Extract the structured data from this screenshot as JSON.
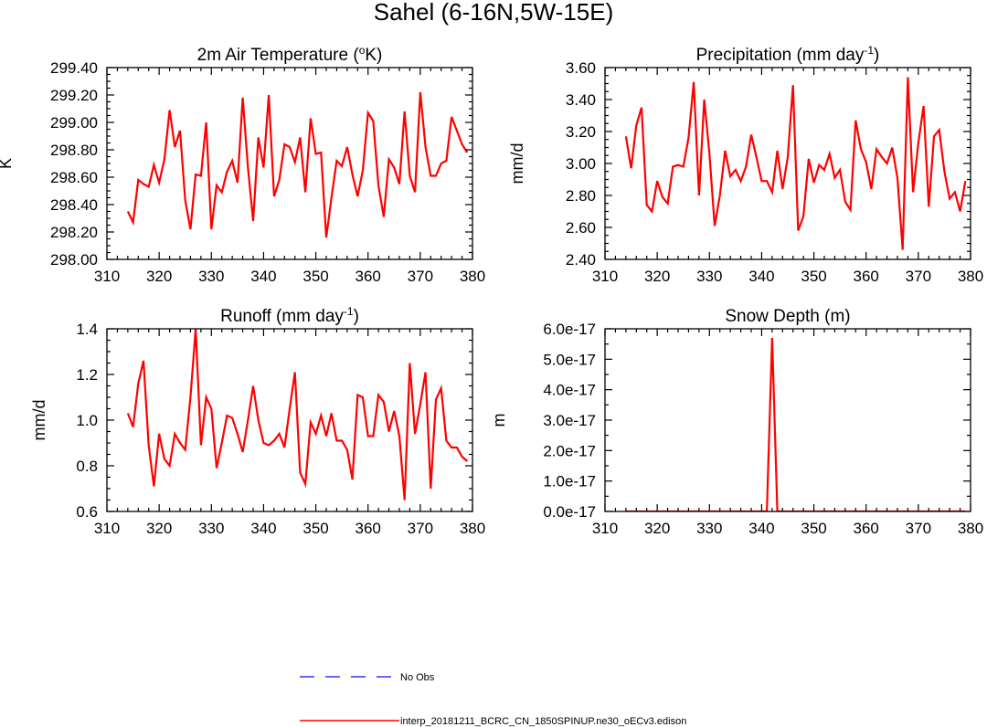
{
  "main_title": "Sahel (6-16N,5W-15E)",
  "colors": {
    "model": "#ff0000",
    "obs": "#3333ff",
    "axis": "#000000"
  },
  "legend": [
    {
      "label": "No Obs",
      "color": "#3333ff",
      "dash": true
    },
    {
      "label": "interp_20181211_BCRC_CN_1850SPINUP.ne30_oECv3.edison",
      "color": "#ff0000",
      "dash": false
    }
  ],
  "chart_data": [
    {
      "id": "temp",
      "type": "line",
      "title_text": "2m Air Temperature (",
      "title_sup": "o",
      "title_tail": "K)",
      "ylabel": "K",
      "xlim": [
        310,
        380
      ],
      "ylim": [
        298.0,
        299.4
      ],
      "xticks": [
        310,
        320,
        330,
        340,
        350,
        360,
        370,
        380
      ],
      "yticks": [
        298.0,
        298.2,
        298.4,
        298.6,
        298.8,
        299.0,
        299.2,
        299.4
      ],
      "ytick_labels": [
        "298.00",
        "298.20",
        "298.40",
        "298.60",
        "298.80",
        "299.00",
        "299.20",
        "299.40"
      ],
      "series": [
        {
          "x": [
            314,
            315,
            316,
            317,
            318,
            319,
            320,
            321,
            322,
            323,
            324,
            325,
            326,
            327,
            328,
            329,
            330,
            331,
            332,
            333,
            334,
            335,
            336,
            337,
            338,
            339,
            340,
            341,
            342,
            343,
            344,
            345,
            346,
            347,
            348,
            349,
            350,
            351,
            352,
            353,
            354,
            355,
            356,
            357,
            358,
            359,
            360,
            361,
            362,
            363,
            364,
            365,
            366,
            367,
            368,
            369,
            370,
            371,
            372,
            373,
            374,
            375,
            376,
            377,
            378,
            379
          ],
          "y": [
            298.35,
            298.27,
            298.58,
            298.55,
            298.53,
            298.69,
            298.56,
            298.73,
            299.09,
            298.82,
            298.94,
            298.43,
            298.22,
            298.62,
            298.61,
            299.0,
            298.22,
            298.54,
            298.49,
            298.64,
            298.72,
            298.56,
            299.18,
            298.67,
            298.28,
            298.89,
            298.67,
            299.2,
            298.46,
            298.58,
            298.84,
            298.82,
            298.71,
            298.89,
            298.49,
            299.03,
            298.77,
            298.78,
            298.16,
            298.45,
            298.72,
            298.68,
            298.82,
            298.62,
            298.46,
            298.65,
            299.07,
            299.01,
            298.54,
            298.31,
            298.73,
            298.67,
            298.55,
            299.08,
            298.61,
            298.49,
            299.22,
            298.82,
            298.61,
            298.61,
            298.7,
            298.72,
            299.04,
            298.94,
            298.84,
            298.78
          ]
        }
      ]
    },
    {
      "id": "precip",
      "type": "line",
      "title_text": "Precipitation (mm day",
      "title_sup": "-1",
      "title_tail": ")",
      "ylabel": "mm/d",
      "xlim": [
        310,
        380
      ],
      "ylim": [
        2.4,
        3.6
      ],
      "xticks": [
        310,
        320,
        330,
        340,
        350,
        360,
        370,
        380
      ],
      "yticks": [
        2.4,
        2.6,
        2.8,
        3.0,
        3.2,
        3.4,
        3.6
      ],
      "ytick_labels": [
        "2.40",
        "2.60",
        "2.80",
        "3.00",
        "3.20",
        "3.40",
        "3.60"
      ],
      "series": [
        {
          "x": [
            314,
            315,
            316,
            317,
            318,
            319,
            320,
            321,
            322,
            323,
            324,
            325,
            326,
            327,
            328,
            329,
            330,
            331,
            332,
            333,
            334,
            335,
            336,
            337,
            338,
            339,
            340,
            341,
            342,
            343,
            344,
            345,
            346,
            347,
            348,
            349,
            350,
            351,
            352,
            353,
            354,
            355,
            356,
            357,
            358,
            359,
            360,
            361,
            362,
            363,
            364,
            365,
            366,
            367,
            368,
            369,
            370,
            371,
            372,
            373,
            374,
            375,
            376,
            377,
            378,
            379
          ],
          "y": [
            3.17,
            2.97,
            3.24,
            3.35,
            2.74,
            2.7,
            2.89,
            2.79,
            2.75,
            2.98,
            2.99,
            2.98,
            3.16,
            3.51,
            2.8,
            3.4,
            3.06,
            2.61,
            2.8,
            3.08,
            2.92,
            2.96,
            2.89,
            2.98,
            3.18,
            3.04,
            2.89,
            2.89,
            2.82,
            3.08,
            2.84,
            3.04,
            3.49,
            2.58,
            2.67,
            3.03,
            2.88,
            2.99,
            2.96,
            3.06,
            2.91,
            2.96,
            2.76,
            2.71,
            3.27,
            3.09,
            3.01,
            2.84,
            3.09,
            3.04,
            3.0,
            3.1,
            2.91,
            2.46,
            3.54,
            2.82,
            3.13,
            3.36,
            2.73,
            3.17,
            3.21,
            2.95,
            2.78,
            2.82,
            2.7,
            2.89
          ]
        }
      ]
    },
    {
      "id": "runoff",
      "type": "line",
      "title_text": "Runoff (mm day",
      "title_sup": "-1",
      "title_tail": ")",
      "ylabel": "mm/d",
      "xlim": [
        310,
        380
      ],
      "ylim": [
        0.6,
        1.4
      ],
      "xticks": [
        310,
        320,
        330,
        340,
        350,
        360,
        370,
        380
      ],
      "yticks": [
        0.6,
        0.8,
        1.0,
        1.2,
        1.4
      ],
      "ytick_labels": [
        "0.6",
        "0.8",
        "1.0",
        "1.2",
        "1.4"
      ],
      "series": [
        {
          "x": [
            314,
            315,
            316,
            317,
            318,
            319,
            320,
            321,
            322,
            323,
            324,
            325,
            326,
            327,
            328,
            329,
            330,
            331,
            332,
            333,
            334,
            335,
            336,
            337,
            338,
            339,
            340,
            341,
            342,
            343,
            344,
            345,
            346,
            347,
            348,
            349,
            350,
            351,
            352,
            353,
            354,
            355,
            356,
            357,
            358,
            359,
            360,
            361,
            362,
            363,
            364,
            365,
            366,
            367,
            368,
            369,
            370,
            371,
            372,
            373,
            374,
            375,
            376,
            377,
            378,
            379
          ],
          "y": [
            1.03,
            0.97,
            1.16,
            1.26,
            0.89,
            0.71,
            0.94,
            0.83,
            0.8,
            0.94,
            0.9,
            0.87,
            1.1,
            1.4,
            0.89,
            1.1,
            1.05,
            0.79,
            0.9,
            1.02,
            1.01,
            0.94,
            0.86,
            1.0,
            1.15,
            1.0,
            0.9,
            0.89,
            0.91,
            0.94,
            0.88,
            1.05,
            1.21,
            0.77,
            0.72,
            0.99,
            0.94,
            1.02,
            0.93,
            1.03,
            0.91,
            0.91,
            0.87,
            0.74,
            1.11,
            1.1,
            0.93,
            0.93,
            1.11,
            1.08,
            0.95,
            1.04,
            0.93,
            0.65,
            1.25,
            0.94,
            1.07,
            1.21,
            0.7,
            1.09,
            1.14,
            0.91,
            0.88,
            0.88,
            0.84,
            0.82
          ]
        }
      ]
    },
    {
      "id": "snow",
      "type": "line",
      "title_text": "Snow Depth (m)",
      "title_sup": "",
      "title_tail": "",
      "ylabel": "m",
      "xlim": [
        310,
        380
      ],
      "ylim": [
        0,
        6e-17
      ],
      "xticks": [
        310,
        320,
        330,
        340,
        350,
        360,
        370,
        380
      ],
      "yticks": [
        0,
        1e-17,
        2e-17,
        3e-17,
        4e-17,
        5e-17,
        6e-17
      ],
      "ytick_labels": [
        "0.0e-17",
        "1.0e-17",
        "2.0e-17",
        "3.0e-17",
        "4.0e-17",
        "5.0e-17",
        "6.0e-17"
      ],
      "series": [
        {
          "x": [
            314,
            315,
            316,
            317,
            318,
            319,
            320,
            321,
            322,
            323,
            324,
            325,
            326,
            327,
            328,
            329,
            330,
            331,
            332,
            333,
            334,
            335,
            336,
            337,
            338,
            339,
            340,
            341,
            342,
            343,
            344,
            345,
            346,
            347,
            348,
            349,
            350,
            351,
            352,
            353,
            354,
            355,
            356,
            357,
            358,
            359,
            360,
            361,
            362,
            363,
            364,
            365,
            366,
            367,
            368,
            369,
            370,
            371,
            372,
            373,
            374,
            375,
            376,
            377,
            378,
            379
          ],
          "y": [
            0,
            0,
            0,
            0,
            0,
            0,
            0,
            0,
            0,
            0,
            0,
            0,
            0,
            0,
            0,
            0,
            0,
            0,
            0,
            0,
            0,
            0,
            0,
            0,
            0,
            0,
            0,
            0,
            5.7e-17,
            0,
            0,
            0,
            0,
            0,
            0,
            0,
            0,
            0,
            0,
            0,
            0,
            0,
            0,
            0,
            0,
            0,
            0,
            0,
            0,
            0,
            0,
            0,
            0,
            0,
            0,
            0,
            0,
            0,
            0,
            0,
            0,
            0,
            0,
            0,
            0,
            0
          ]
        }
      ]
    }
  ]
}
